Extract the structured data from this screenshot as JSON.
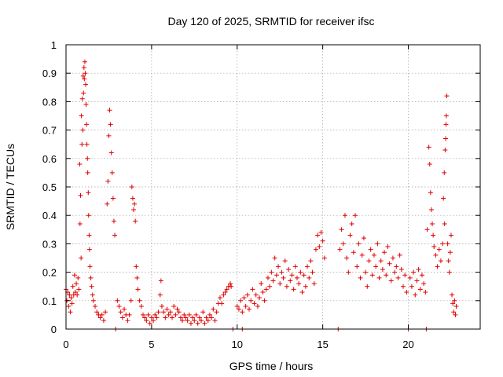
{
  "chart_data": {
    "type": "scatter",
    "title": "Day 120 of 2025, SRMTID for receiver ifsc",
    "xlabel": "GPS time / hours",
    "ylabel": "SRMTID / TECUs",
    "xlim": [
      0,
      24.2
    ],
    "ylim": [
      0,
      1
    ],
    "xticks": [
      0,
      5,
      10,
      15,
      20
    ],
    "xtick_labels": [
      "0",
      "5",
      "10",
      "15",
      "20"
    ],
    "yticks": [
      0,
      0.1,
      0.2,
      0.3,
      0.4,
      0.5,
      0.6,
      0.7,
      0.8,
      0.9,
      1
    ],
    "ytick_labels": [
      "0",
      "0.1",
      "0.2",
      "0.3",
      "0.4",
      "0.5",
      "0.6",
      "0.7",
      "0.8",
      "0.9",
      "1"
    ],
    "grid": true,
    "marker": "+",
    "color": "#e00000",
    "series": [
      {
        "name": "SRMTID",
        "points": [
          [
            0.0,
            0.14
          ],
          [
            0.05,
            0.1
          ],
          [
            0.1,
            0.13
          ],
          [
            0.15,
            0.08
          ],
          [
            0.2,
            0.12
          ],
          [
            0.25,
            0.06
          ],
          [
            0.3,
            0.11
          ],
          [
            0.35,
            0.09
          ],
          [
            0.4,
            0.15
          ],
          [
            0.45,
            0.12
          ],
          [
            0.5,
            0.19
          ],
          [
            0.55,
            0.13
          ],
          [
            0.6,
            0.16
          ],
          [
            0.65,
            0.12
          ],
          [
            0.7,
            0.18
          ],
          [
            0.75,
            0.14
          ],
          [
            0.8,
            0.58
          ],
          [
            0.82,
            0.37
          ],
          [
            0.85,
            0.47
          ],
          [
            0.88,
            0.25
          ],
          [
            0.9,
            0.75
          ],
          [
            0.93,
            0.65
          ],
          [
            0.95,
            0.81
          ],
          [
            0.98,
            0.7
          ],
          [
            1.0,
            0.89
          ],
          [
            1.02,
            0.83
          ],
          [
            1.05,
            0.92
          ],
          [
            1.07,
            0.88
          ],
          [
            1.1,
            0.94
          ],
          [
            1.12,
            0.9
          ],
          [
            1.15,
            0.86
          ],
          [
            1.17,
            0.79
          ],
          [
            1.2,
            0.72
          ],
          [
            1.22,
            0.65
          ],
          [
            1.25,
            0.6
          ],
          [
            1.27,
            0.55
          ],
          [
            1.3,
            0.48
          ],
          [
            1.32,
            0.4
          ],
          [
            1.35,
            0.33
          ],
          [
            1.37,
            0.28
          ],
          [
            1.4,
            0.22
          ],
          [
            1.45,
            0.18
          ],
          [
            1.5,
            0.15
          ],
          [
            1.55,
            0.12
          ],
          [
            1.6,
            0.1
          ],
          [
            1.7,
            0.08
          ],
          [
            1.8,
            0.06
          ],
          [
            1.9,
            0.05
          ],
          [
            2.0,
            0.04
          ],
          [
            2.1,
            0.05
          ],
          [
            2.2,
            0.03
          ],
          [
            2.3,
            0.06
          ],
          [
            2.4,
            0.44
          ],
          [
            2.45,
            0.52
          ],
          [
            2.5,
            0.68
          ],
          [
            2.55,
            0.77
          ],
          [
            2.6,
            0.72
          ],
          [
            2.65,
            0.62
          ],
          [
            2.7,
            0.55
          ],
          [
            2.75,
            0.46
          ],
          [
            2.8,
            0.38
          ],
          [
            2.85,
            0.33
          ],
          [
            2.9,
            0.0
          ],
          [
            3.0,
            0.1
          ],
          [
            3.1,
            0.08
          ],
          [
            3.2,
            0.06
          ],
          [
            3.3,
            0.04
          ],
          [
            3.4,
            0.07
          ],
          [
            3.5,
            0.05
          ],
          [
            3.6,
            0.03
          ],
          [
            3.7,
            0.05
          ],
          [
            3.8,
            0.1
          ],
          [
            3.85,
            0.5
          ],
          [
            3.9,
            0.46
          ],
          [
            3.95,
            0.42
          ],
          [
            4.0,
            0.44
          ],
          [
            4.05,
            0.38
          ],
          [
            4.1,
            0.22
          ],
          [
            4.15,
            0.18
          ],
          [
            4.2,
            0.14
          ],
          [
            4.3,
            0.1
          ],
          [
            4.4,
            0.08
          ],
          [
            4.5,
            0.05
          ],
          [
            4.6,
            0.04
          ],
          [
            4.7,
            0.03
          ],
          [
            4.8,
            0.05
          ],
          [
            4.9,
            0.02
          ],
          [
            5.0,
            0.04
          ],
          [
            5.1,
            0.03
          ],
          [
            5.2,
            0.05
          ],
          [
            5.3,
            0.04
          ],
          [
            5.4,
            0.06
          ],
          [
            5.5,
            0.12
          ],
          [
            5.55,
            0.17
          ],
          [
            5.6,
            0.08
          ],
          [
            5.7,
            0.06
          ],
          [
            5.8,
            0.04
          ],
          [
            5.9,
            0.07
          ],
          [
            6.0,
            0.05
          ],
          [
            6.1,
            0.06
          ],
          [
            6.2,
            0.04
          ],
          [
            6.3,
            0.08
          ],
          [
            6.4,
            0.05
          ],
          [
            6.5,
            0.07
          ],
          [
            6.6,
            0.06
          ],
          [
            6.7,
            0.04
          ],
          [
            6.8,
            0.03
          ],
          [
            6.9,
            0.05
          ],
          [
            7.0,
            0.04
          ],
          [
            7.1,
            0.03
          ],
          [
            7.2,
            0.05
          ],
          [
            7.3,
            0.02
          ],
          [
            7.4,
            0.04
          ],
          [
            7.5,
            0.03
          ],
          [
            7.6,
            0.05
          ],
          [
            7.7,
            0.02
          ],
          [
            7.8,
            0.04
          ],
          [
            7.9,
            0.03
          ],
          [
            8.0,
            0.06
          ],
          [
            8.1,
            0.02
          ],
          [
            8.2,
            0.04
          ],
          [
            8.3,
            0.03
          ],
          [
            8.4,
            0.05
          ],
          [
            8.5,
            0.04
          ],
          [
            8.6,
            0.07
          ],
          [
            8.7,
            0.03
          ],
          [
            8.8,
            0.06
          ],
          [
            8.9,
            0.09
          ],
          [
            9.0,
            0.11
          ],
          [
            9.1,
            0.09
          ],
          [
            9.2,
            0.12
          ],
          [
            9.3,
            0.13
          ],
          [
            9.4,
            0.14
          ],
          [
            9.5,
            0.15
          ],
          [
            9.6,
            0.16
          ],
          [
            9.65,
            0.15
          ],
          [
            9.75,
            0.0
          ],
          [
            10.3,
            0.0
          ],
          [
            10.0,
            0.08
          ],
          [
            10.1,
            0.07
          ],
          [
            10.2,
            0.1
          ],
          [
            10.3,
            0.06
          ],
          [
            10.4,
            0.11
          ],
          [
            10.5,
            0.08
          ],
          [
            10.6,
            0.12
          ],
          [
            10.7,
            0.07
          ],
          [
            10.8,
            0.1
          ],
          [
            10.9,
            0.14
          ],
          [
            11.0,
            0.09
          ],
          [
            11.1,
            0.12
          ],
          [
            11.2,
            0.08
          ],
          [
            11.3,
            0.11
          ],
          [
            11.4,
            0.16
          ],
          [
            11.5,
            0.13
          ],
          [
            11.6,
            0.1
          ],
          [
            11.7,
            0.14
          ],
          [
            11.8,
            0.18
          ],
          [
            11.9,
            0.15
          ],
          [
            12.0,
            0.2
          ],
          [
            12.1,
            0.17
          ],
          [
            12.2,
            0.25
          ],
          [
            12.3,
            0.19
          ],
          [
            12.4,
            0.22
          ],
          [
            12.5,
            0.16
          ],
          [
            12.6,
            0.2
          ],
          [
            12.7,
            0.18
          ],
          [
            12.8,
            0.24
          ],
          [
            12.9,
            0.15
          ],
          [
            13.0,
            0.21
          ],
          [
            13.1,
            0.17
          ],
          [
            13.2,
            0.19
          ],
          [
            13.3,
            0.14
          ],
          [
            13.4,
            0.22
          ],
          [
            13.5,
            0.18
          ],
          [
            13.6,
            0.16
          ],
          [
            13.7,
            0.2
          ],
          [
            13.8,
            0.13
          ],
          [
            13.9,
            0.19
          ],
          [
            14.0,
            0.15
          ],
          [
            14.1,
            0.22
          ],
          [
            14.2,
            0.18
          ],
          [
            14.3,
            0.24
          ],
          [
            14.4,
            0.2
          ],
          [
            14.5,
            0.16
          ],
          [
            14.6,
            0.28
          ],
          [
            14.7,
            0.33
          ],
          [
            14.8,
            0.29
          ],
          [
            14.9,
            0.34
          ],
          [
            15.0,
            0.31
          ],
          [
            15.1,
            0.25
          ],
          [
            15.9,
            0.0
          ],
          [
            16.0,
            0.28
          ],
          [
            16.1,
            0.35
          ],
          [
            16.2,
            0.3
          ],
          [
            16.3,
            0.4
          ],
          [
            16.4,
            0.25
          ],
          [
            16.5,
            0.2
          ],
          [
            16.6,
            0.33
          ],
          [
            16.7,
            0.37
          ],
          [
            16.8,
            0.27
          ],
          [
            16.9,
            0.4
          ],
          [
            17.0,
            0.22
          ],
          [
            17.1,
            0.3
          ],
          [
            17.2,
            0.18
          ],
          [
            17.3,
            0.26
          ],
          [
            17.4,
            0.32
          ],
          [
            17.5,
            0.2
          ],
          [
            17.6,
            0.15
          ],
          [
            17.7,
            0.24
          ],
          [
            17.8,
            0.28
          ],
          [
            17.9,
            0.19
          ],
          [
            18.0,
            0.26
          ],
          [
            18.1,
            0.22
          ],
          [
            18.2,
            0.3
          ],
          [
            18.3,
            0.18
          ],
          [
            18.4,
            0.24
          ],
          [
            18.5,
            0.21
          ],
          [
            18.6,
            0.27
          ],
          [
            18.7,
            0.19
          ],
          [
            18.8,
            0.29
          ],
          [
            18.9,
            0.23
          ],
          [
            19.0,
            0.17
          ],
          [
            19.1,
            0.25
          ],
          [
            19.2,
            0.2
          ],
          [
            19.3,
            0.22
          ],
          [
            19.4,
            0.18
          ],
          [
            19.5,
            0.26
          ],
          [
            19.6,
            0.21
          ],
          [
            19.7,
            0.15
          ],
          [
            19.8,
            0.19
          ],
          [
            19.9,
            0.13
          ],
          [
            20.0,
            0.0
          ],
          [
            20.1,
            0.18
          ],
          [
            20.2,
            0.15
          ],
          [
            20.3,
            0.2
          ],
          [
            20.4,
            0.12
          ],
          [
            20.5,
            0.17
          ],
          [
            20.6,
            0.21
          ],
          [
            20.7,
            0.14
          ],
          [
            20.8,
            0.19
          ],
          [
            20.9,
            0.16
          ],
          [
            21.0,
            0.13
          ],
          [
            21.05,
            0.0
          ],
          [
            21.1,
            0.35
          ],
          [
            21.2,
            0.64
          ],
          [
            21.25,
            0.58
          ],
          [
            21.3,
            0.48
          ],
          [
            21.35,
            0.42
          ],
          [
            21.4,
            0.37
          ],
          [
            21.45,
            0.33
          ],
          [
            21.5,
            0.29
          ],
          [
            21.6,
            0.26
          ],
          [
            21.7,
            0.22
          ],
          [
            21.8,
            0.28
          ],
          [
            21.9,
            0.24
          ],
          [
            22.0,
            0.3
          ],
          [
            22.05,
            0.46
          ],
          [
            22.1,
            0.55
          ],
          [
            22.12,
            0.37
          ],
          [
            22.15,
            0.63
          ],
          [
            22.18,
            0.67
          ],
          [
            22.2,
            0.72
          ],
          [
            22.22,
            0.75
          ],
          [
            22.25,
            0.82
          ],
          [
            22.3,
            0.3
          ],
          [
            22.35,
            0.24
          ],
          [
            22.4,
            0.2
          ],
          [
            22.45,
            0.27
          ],
          [
            22.5,
            0.33
          ],
          [
            22.55,
            0.12
          ],
          [
            22.6,
            0.09
          ],
          [
            22.65,
            0.06
          ],
          [
            22.7,
            0.1
          ],
          [
            22.75,
            0.05
          ],
          [
            22.8,
            0.08
          ]
        ]
      }
    ]
  }
}
